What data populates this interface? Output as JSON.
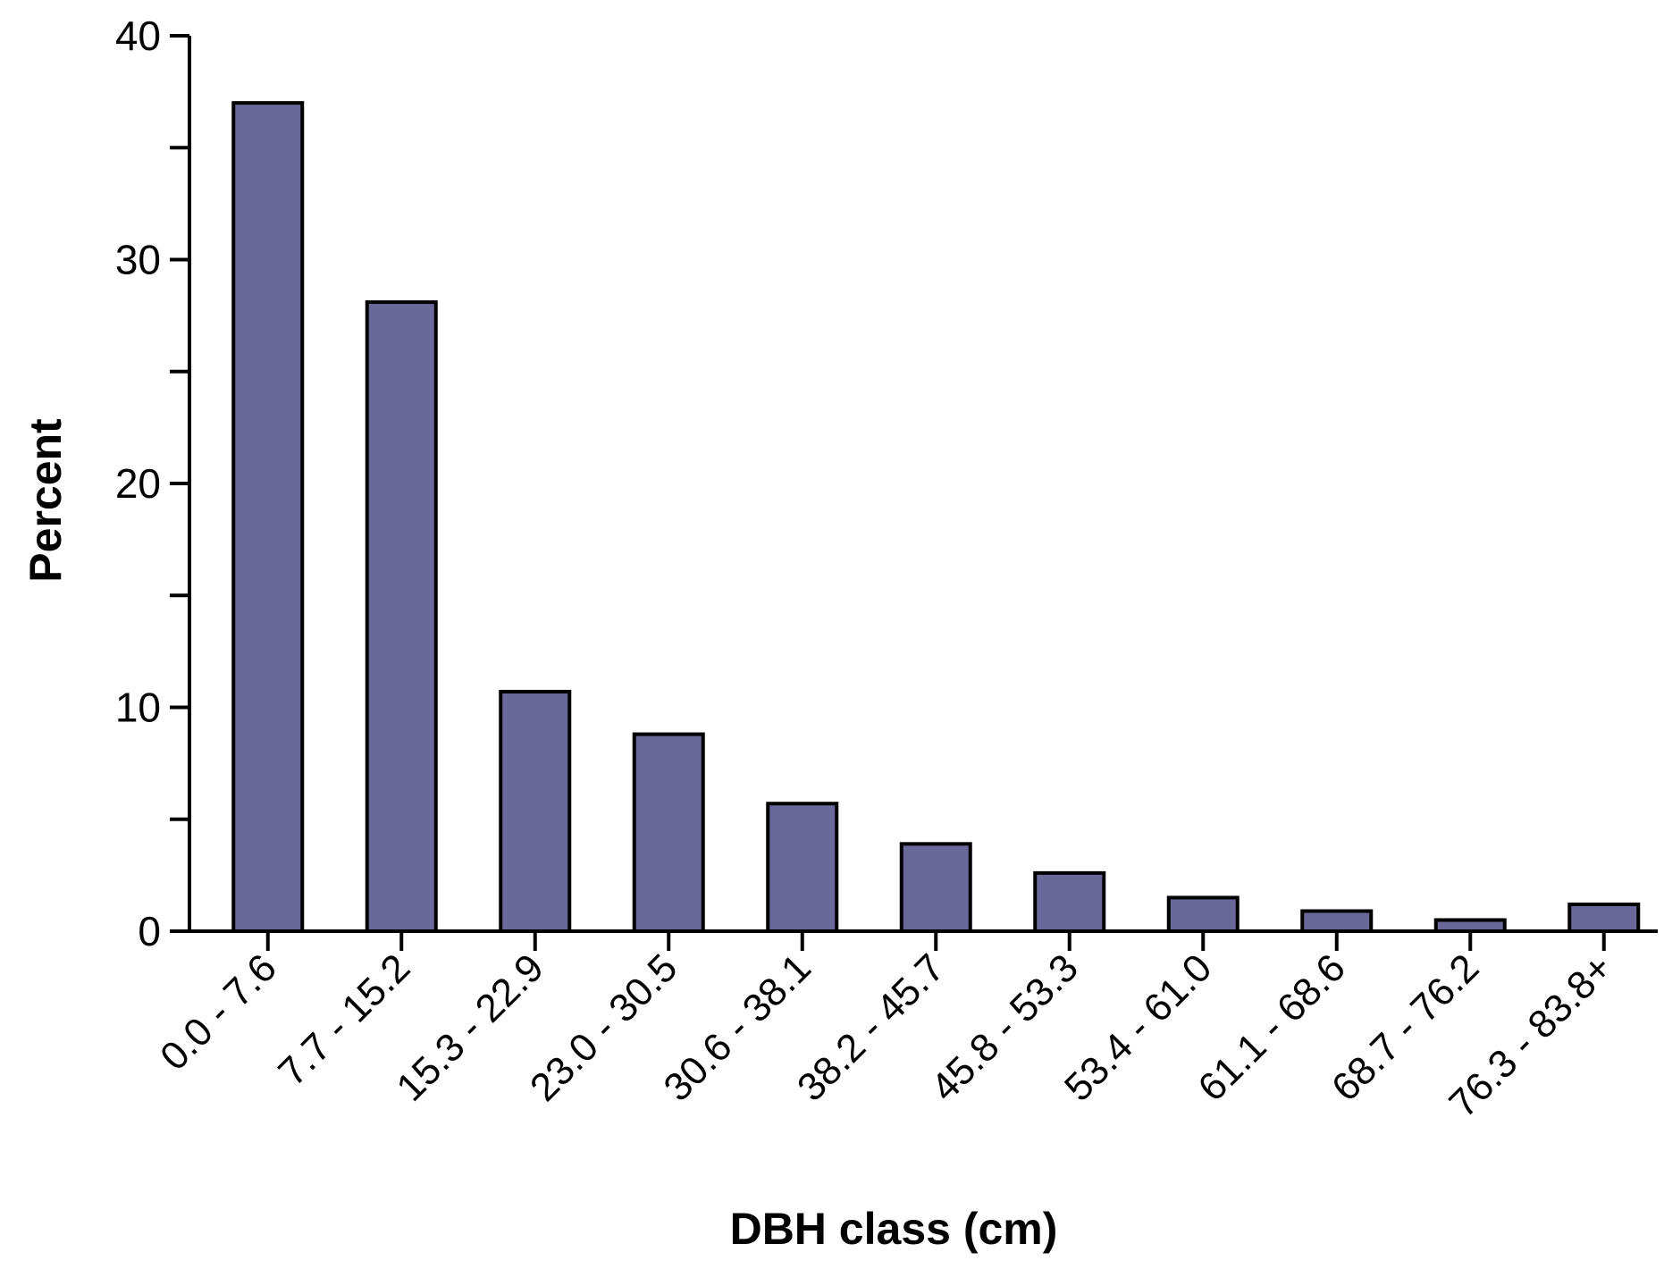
{
  "chart_data": {
    "type": "bar",
    "title": "",
    "xlabel": "DBH class (cm)",
    "ylabel": "Percent",
    "categories": [
      "0.0 - 7.6",
      "7.7 - 15.2",
      "15.3 - 22.9",
      "23.0 - 30.5",
      "30.6 - 38.1",
      "38.2 - 45.7",
      "45.8 - 53.3",
      "53.4 - 61.0",
      "61.1 - 68.6",
      "68.7 - 76.2",
      "76.3 - 83.8+"
    ],
    "values": [
      37.0,
      28.1,
      10.7,
      8.8,
      5.7,
      3.9,
      2.6,
      1.5,
      0.9,
      0.5,
      1.2
    ],
    "ylim": [
      0,
      40
    ],
    "yticks": [
      0,
      10,
      20,
      30,
      40
    ],
    "minor_yticks": [
      5,
      15,
      25,
      35
    ],
    "grid": false,
    "legend": "none",
    "bar_color": "#6a6898",
    "edge_color": "#000000"
  }
}
